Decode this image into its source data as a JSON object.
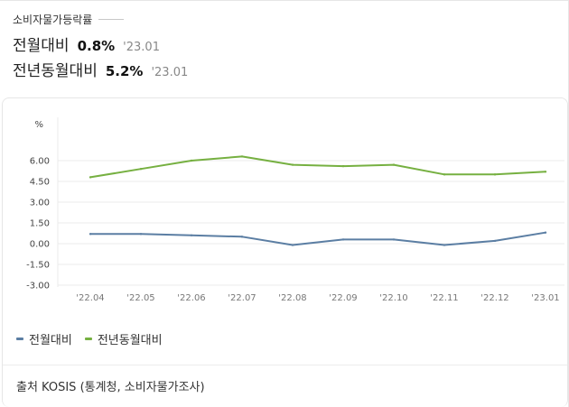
{
  "header": {
    "title": "소비자물가등락률",
    "stats": [
      {
        "label": "전월대비",
        "value": "0.8%",
        "date": "'23.01"
      },
      {
        "label": "전년동월대비",
        "value": "5.2%",
        "date": "'23.01"
      }
    ]
  },
  "colors": {
    "mom": "#5b7ea3",
    "yoy": "#76b041",
    "grid": "#ebebeb"
  },
  "chart_data": {
    "type": "line",
    "ylabel": "%",
    "y_ticks": [
      "6.00",
      "4.50",
      "3.00",
      "1.50",
      "0.00",
      "-1.50",
      "-3.00"
    ],
    "ylim": [
      -3,
      6
    ],
    "grid": true,
    "legend_position": "bottom-left",
    "categories": [
      "'22.04",
      "'22.05",
      "'22.06",
      "'22.07",
      "'22.08",
      "'22.09",
      "'22.10",
      "'22.11",
      "'22.12",
      "'23.01"
    ],
    "series": [
      {
        "name": "전월대비",
        "color": "#5b7ea3",
        "values": [
          0.7,
          0.7,
          0.6,
          0.5,
          -0.1,
          0.3,
          0.3,
          -0.1,
          0.2,
          0.8
        ]
      },
      {
        "name": "전년동월대비",
        "color": "#76b041",
        "values": [
          4.8,
          5.4,
          6.0,
          6.3,
          5.7,
          5.6,
          5.7,
          5.0,
          5.0,
          5.2
        ]
      }
    ]
  },
  "source": "출처 KOSIS (통계청, 소비자물가조사)"
}
